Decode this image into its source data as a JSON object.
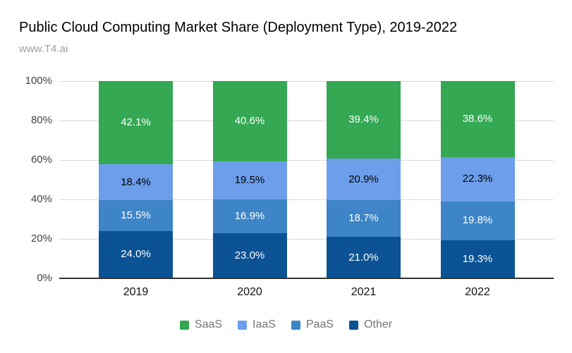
{
  "header": {
    "title": "Public Cloud Computing Market Share (Deployment Type), 2019-2022",
    "subtitle": "www.T4.ai"
  },
  "chart_data": {
    "type": "bar",
    "stacked": true,
    "title": "Public Cloud Computing Market Share (Deployment Type), 2019-2022",
    "source_label": "www.T4.ai",
    "categories": [
      "2019",
      "2020",
      "2021",
      "2022"
    ],
    "series": [
      {
        "name": "SaaS",
        "color": "#34A853",
        "label_color": "#ffffff",
        "values": [
          42.1,
          40.6,
          39.4,
          38.6
        ]
      },
      {
        "name": "IaaS",
        "color": "#6D9EEB",
        "label_color": "#000000",
        "values": [
          18.4,
          19.5,
          20.9,
          22.3
        ]
      },
      {
        "name": "PaaS",
        "color": "#3D85C6",
        "label_color": "#ffffff",
        "values": [
          15.5,
          16.9,
          18.7,
          19.8
        ]
      },
      {
        "name": "Other",
        "color": "#0B5394",
        "label_color": "#ffffff",
        "values": [
          24.0,
          23.0,
          21.0,
          19.3
        ]
      }
    ],
    "value_suffix": "%",
    "value_decimals": 1,
    "y_axis": {
      "min": 0,
      "max": 100,
      "ticks": [
        "0%",
        "20%",
        "40%",
        "60%",
        "80%",
        "100%"
      ]
    },
    "xlabel": "",
    "ylabel": "",
    "grid": true,
    "legend_position": "bottom"
  },
  "colors": {
    "background": "#ffffff",
    "gridline": "#d9d9d9",
    "axis_line": "#333333",
    "title_text": "#000000",
    "subtitle_text": "#9e9e9e",
    "tick_text": "#424242",
    "category_text": "#111111",
    "legend_text": "#757575"
  }
}
